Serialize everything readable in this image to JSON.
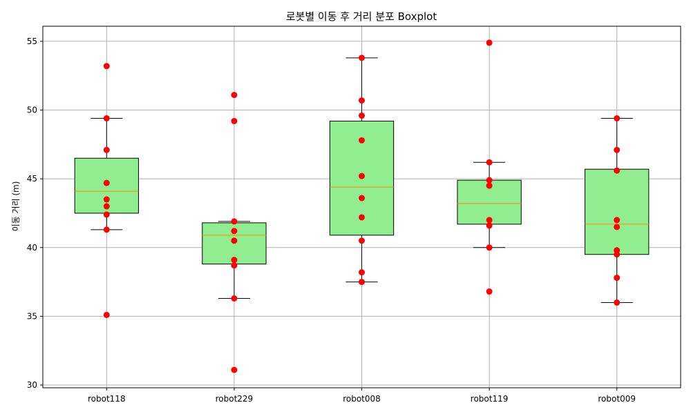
{
  "chart_data": {
    "type": "boxplot",
    "title": "로봇별 이동 후 거리 분포 Boxplot",
    "xlabel": "",
    "ylabel": "이동 거리 (m)",
    "ylim": [
      29.8,
      56.1
    ],
    "yticks": [
      30,
      35,
      40,
      45,
      50,
      55
    ],
    "grid": true,
    "colors": {
      "box_fill": "#90ee90",
      "median": "#ff8c00",
      "points": "#ff0000",
      "edge": "#000000",
      "grid": "#b0b0b0"
    },
    "categories": [
      "robot118",
      "robot229",
      "robot008",
      "robot119",
      "robot009"
    ],
    "boxes": [
      {
        "name": "robot118",
        "whisker_low": 41.3,
        "q1": 42.5,
        "median": 44.1,
        "q3": 46.5,
        "whisker_high": 49.4,
        "points": [
          53.2,
          49.4,
          47.1,
          44.7,
          43.5,
          43.0,
          42.4,
          41.3,
          35.1
        ]
      },
      {
        "name": "robot229",
        "whisker_low": 36.3,
        "q1": 38.8,
        "median": 40.9,
        "q3": 41.8,
        "whisker_high": 41.9,
        "points": [
          51.1,
          49.2,
          41.9,
          41.2,
          40.5,
          39.1,
          38.7,
          36.3,
          31.1
        ]
      },
      {
        "name": "robot008",
        "whisker_low": 37.5,
        "q1": 40.9,
        "median": 44.4,
        "q3": 49.2,
        "whisker_high": 53.8,
        "points": [
          53.8,
          50.7,
          49.6,
          47.8,
          45.2,
          43.6,
          42.2,
          40.5,
          38.2,
          37.5
        ]
      },
      {
        "name": "robot119",
        "whisker_low": 40.0,
        "q1": 41.7,
        "median": 43.2,
        "q3": 44.9,
        "whisker_high": 46.2,
        "points": [
          54.9,
          46.2,
          44.9,
          44.5,
          42.0,
          41.6,
          40.0,
          36.8
        ]
      },
      {
        "name": "robot009",
        "whisker_low": 36.0,
        "q1": 39.5,
        "median": 41.7,
        "q3": 45.7,
        "whisker_high": 49.4,
        "points": [
          49.4,
          47.1,
          45.6,
          42.0,
          41.5,
          39.8,
          39.5,
          37.8,
          36.0
        ]
      }
    ]
  }
}
